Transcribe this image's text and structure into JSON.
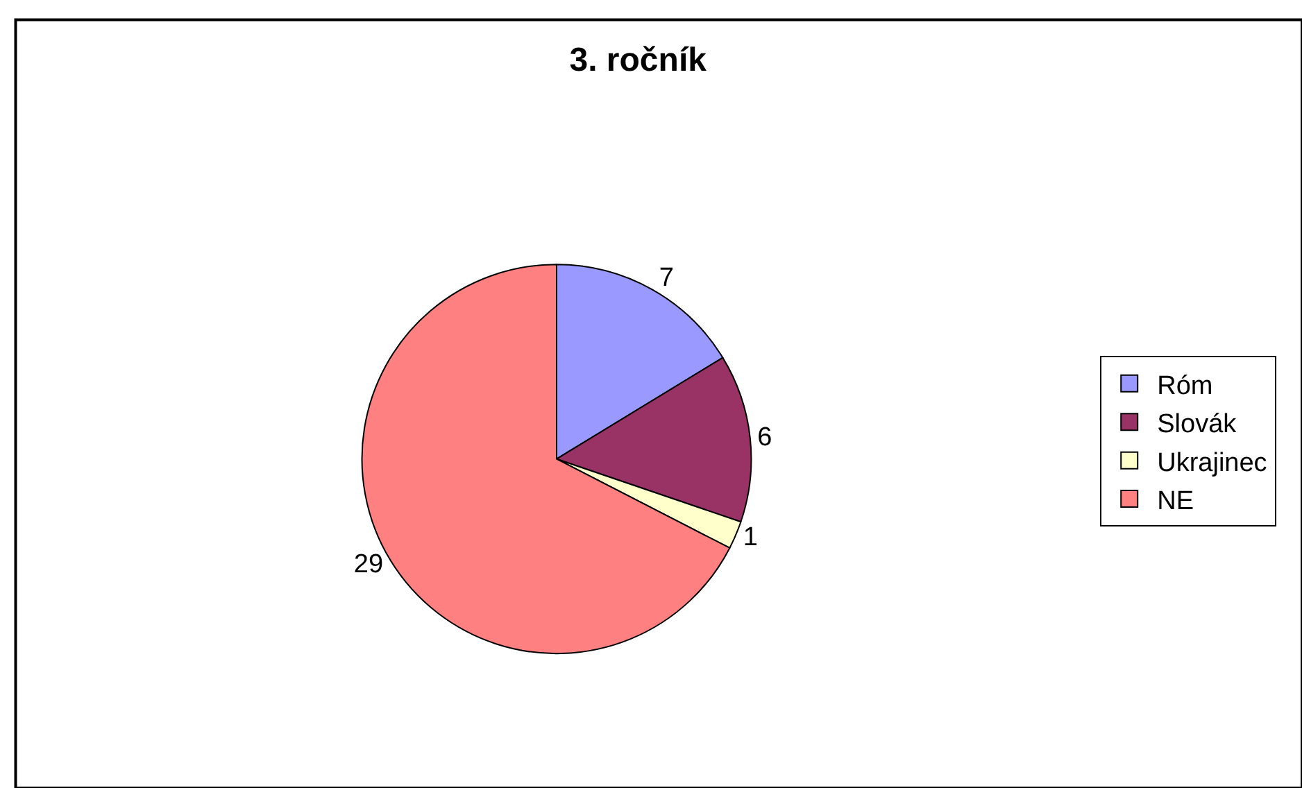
{
  "chart_data": {
    "type": "pie",
    "title": "3. ročník",
    "categories": [
      "Róm",
      "Slovák",
      "Ukrajinec",
      "NE"
    ],
    "values": [
      7,
      6,
      1,
      29
    ],
    "colors": [
      "#9999ff",
      "#993366",
      "#ffffcc",
      "#ff8080"
    ],
    "data_labels": true,
    "legend": "right"
  }
}
